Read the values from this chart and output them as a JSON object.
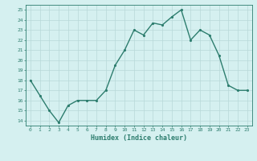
{
  "x": [
    0,
    1,
    2,
    3,
    4,
    5,
    6,
    7,
    8,
    9,
    10,
    11,
    12,
    13,
    14,
    15,
    16,
    17,
    18,
    19,
    20,
    21,
    22,
    23
  ],
  "y": [
    18.0,
    16.5,
    15.0,
    13.8,
    15.5,
    16.0,
    16.0,
    16.0,
    17.0,
    19.5,
    21.0,
    23.0,
    22.5,
    23.7,
    23.5,
    24.3,
    25.0,
    22.0,
    23.0,
    22.5,
    20.5,
    17.5,
    17.0,
    17.0
  ],
  "line_color": "#2d7d6e",
  "marker_color": "#2d7d6e",
  "bg_color": "#d5f0f0",
  "grid_color": "#b8d8d8",
  "xlabel": "Humidex (Indice chaleur)",
  "ylabel_ticks": [
    14,
    15,
    16,
    17,
    18,
    19,
    20,
    21,
    22,
    23,
    24,
    25
  ],
  "xlim": [
    -0.5,
    23.5
  ],
  "ylim": [
    13.5,
    25.5
  ],
  "xtick_labels": [
    "0",
    "1",
    "2",
    "3",
    "4",
    "5",
    "6",
    "7",
    "8",
    "9",
    "10",
    "11",
    "12",
    "13",
    "14",
    "15",
    "16",
    "17",
    "18",
    "19",
    "20",
    "21",
    "22",
    "23"
  ],
  "tick_color": "#2d7d6e",
  "xlabel_color": "#2d7d6e",
  "marker_size": 2.5,
  "line_width": 1.0
}
